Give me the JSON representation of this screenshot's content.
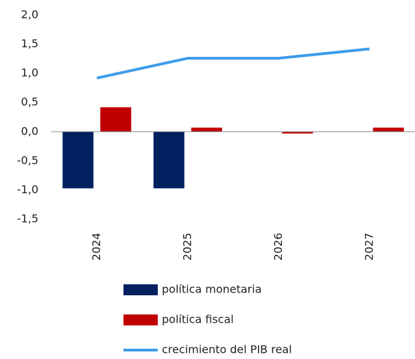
{
  "chart_data": {
    "type": "bar",
    "categories": [
      "2024",
      "2025",
      "2026",
      "2027"
    ],
    "series": [
      {
        "name": "política monetaria",
        "type": "bar",
        "color": "#002060",
        "values": [
          -0.97,
          -0.97,
          0,
          0
        ]
      },
      {
        "name": "política fiscal",
        "type": "bar",
        "color": "#c00000",
        "values": [
          0.42,
          0.07,
          -0.03,
          0.07
        ]
      },
      {
        "name": "crecimiento del PIB real",
        "type": "line",
        "color": "#3d9be9",
        "values": [
          0.92,
          1.26,
          1.26,
          1.42
        ]
      }
    ],
    "ylim": [
      -1.5,
      2.0
    ],
    "yticks": [
      {
        "value": -1.5,
        "label": "-1,5"
      },
      {
        "value": -1.0,
        "label": "-1,0"
      },
      {
        "value": -0.5,
        "label": "-0,5"
      },
      {
        "value": 0,
        "label": "0,0"
      },
      {
        "value": 0.5,
        "label": "0,5"
      },
      {
        "value": 1.0,
        "label": "1,0"
      },
      {
        "value": 1.5,
        "label": "1,5"
      },
      {
        "value": 2.0,
        "label": "2,0"
      }
    ],
    "grid": false
  }
}
